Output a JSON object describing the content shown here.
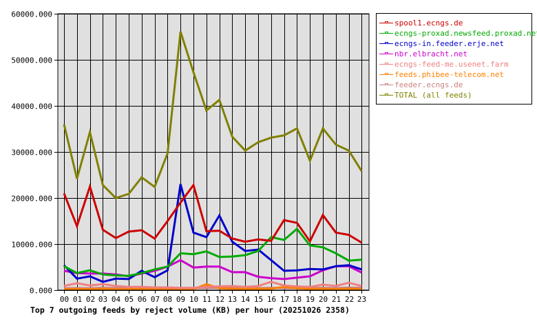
{
  "chart_data": {
    "type": "line",
    "title": "Top 7 outgoing feeds by reject volume (KB) per hour (20251026 2358)",
    "xlabel": "",
    "ylabel": "",
    "ylim": [
      0,
      60000
    ],
    "yticks": [
      "0.000",
      "10000.000",
      "20000.000",
      "30000.000",
      "40000.000",
      "50000.000",
      "60000.000"
    ],
    "grid": true,
    "legend_position": "right",
    "categories": [
      "00",
      "01",
      "02",
      "03",
      "04",
      "05",
      "06",
      "07",
      "08",
      "09",
      "10",
      "11",
      "12",
      "13",
      "14",
      "15",
      "16",
      "17",
      "18",
      "19",
      "20",
      "21",
      "22",
      "23"
    ],
    "series": [
      {
        "name": "spool1.ecngs.de",
        "color": "#cc0000",
        "values": [
          21000,
          13900,
          22500,
          13100,
          11300,
          12700,
          13000,
          11200,
          15000,
          19000,
          22800,
          12800,
          12900,
          11200,
          10500,
          11000,
          10700,
          15200,
          14600,
          10600,
          16300,
          12500,
          12000,
          10300
        ]
      },
      {
        "name": "ecngs-proxad.newsfeed.proxad.net",
        "color": "#00aa00",
        "values": [
          5200,
          3700,
          4300,
          3400,
          3200,
          3100,
          3700,
          4500,
          5100,
          8000,
          7800,
          8400,
          7200,
          7300,
          7600,
          8500,
          11500,
          10900,
          13300,
          9700,
          9300,
          8000,
          6400,
          6600
        ]
      },
      {
        "name": "ecngs-in.feeder.erje.net",
        "color": "#0000cc",
        "values": [
          5400,
          2500,
          3000,
          1800,
          2500,
          2400,
          4200,
          2800,
          4300,
          23000,
          12500,
          11500,
          16200,
          10500,
          8500,
          8800,
          6500,
          4200,
          4300,
          4600,
          4500,
          5200,
          5400,
          4500
        ]
      },
      {
        "name": "nbr.elbracht.net",
        "color": "#cc00cc",
        "values": [
          4200,
          3700,
          3600,
          3600,
          3400,
          3000,
          3600,
          4200,
          5100,
          6500,
          4900,
          5100,
          5100,
          3900,
          3900,
          2900,
          2600,
          2400,
          2700,
          3000,
          4300,
          5200,
          5200,
          3800
        ]
      },
      {
        "name": "ecngs-feed-me.usenet.farm",
        "color": "#f08080",
        "values": [
          900,
          1500,
          1000,
          1300,
          900,
          700,
          700,
          600,
          600,
          500,
          500,
          700,
          800,
          900,
          700,
          900,
          1800,
          1000,
          800,
          700,
          1200,
          900,
          1600,
          900
        ]
      },
      {
        "name": "feeds.phibee-telecom.net",
        "color": "#ff8000",
        "values": [
          200,
          250,
          200,
          300,
          200,
          200,
          250,
          200,
          250,
          200,
          200,
          1300,
          400,
          300,
          250,
          300,
          300,
          700,
          400,
          250,
          300,
          200,
          300,
          200
        ]
      },
      {
        "name": "feeder.ecngs.de",
        "color": "#cc8080",
        "values": [
          400,
          450,
          400,
          500,
          450,
          400,
          450,
          400,
          450,
          400,
          400,
          450,
          500,
          450,
          400,
          450,
          500,
          450,
          400,
          450,
          500,
          450,
          550,
          500
        ]
      },
      {
        "name": "TOTAL (all feeds)",
        "color": "#808000",
        "values": [
          36000,
          24200,
          34300,
          22800,
          20000,
          20900,
          24500,
          22400,
          29700,
          56100,
          47300,
          39000,
          41300,
          33300,
          30300,
          32100,
          33100,
          33600,
          35100,
          28100,
          35100,
          31600,
          30300,
          25800
        ]
      }
    ]
  }
}
